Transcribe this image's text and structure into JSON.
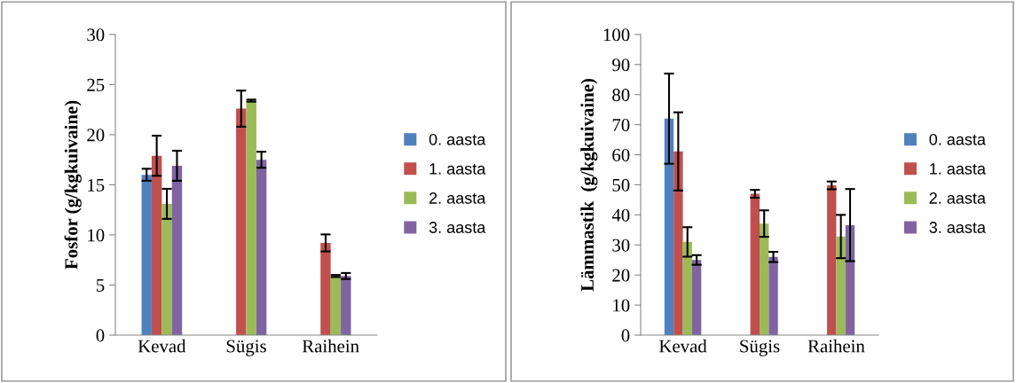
{
  "chart_data": [
    {
      "type": "bar",
      "ylabel": "Fosfor (g/kgkuivaine)",
      "categories": [
        "Kevad",
        "Sügis",
        "Raihein"
      ],
      "ylim": [
        0,
        30
      ],
      "yticks": [
        0,
        5,
        10,
        15,
        20,
        25,
        30
      ],
      "grid": false,
      "legend": "right",
      "series": [
        {
          "name": "0. aasta",
          "color": "#4f81bd",
          "values": [
            16.0,
            null,
            null
          ],
          "errors": [
            0.6,
            null,
            null
          ]
        },
        {
          "name": "1. aasta",
          "color": "#c0504d",
          "values": [
            17.9,
            22.6,
            9.2
          ],
          "errors": [
            2.0,
            1.8,
            0.85
          ]
        },
        {
          "name": "2. aasta",
          "color": "#9bbb59",
          "values": [
            13.1,
            23.4,
            5.9
          ],
          "errors": [
            1.5,
            0.1,
            0.1
          ]
        },
        {
          "name": "3. aasta",
          "color": "#8064a2",
          "values": [
            16.9,
            17.5,
            5.9
          ],
          "errors": [
            1.5,
            0.8,
            0.3
          ]
        }
      ]
    },
    {
      "type": "bar",
      "ylabel": "Lämmastik  (g/kgkuivaine)",
      "categories": [
        "Kevad",
        "Sügis",
        "Raihein"
      ],
      "ylim": [
        0,
        100
      ],
      "yticks": [
        0,
        10,
        20,
        30,
        40,
        50,
        60,
        70,
        80,
        90,
        100
      ],
      "grid": false,
      "legend": "right",
      "series": [
        {
          "name": "0. aasta",
          "color": "#4f81bd",
          "values": [
            72.0,
            null,
            null
          ],
          "errors": [
            15,
            null,
            null
          ]
        },
        {
          "name": "1. aasta",
          "color": "#c0504d",
          "values": [
            61.1,
            47.0,
            49.8
          ],
          "errors": [
            13,
            1.3,
            1.3
          ]
        },
        {
          "name": "2. aasta",
          "color": "#9bbb59",
          "values": [
            31.0,
            37.1,
            32.8
          ],
          "errors": [
            4.9,
            4.4,
            7.2
          ]
        },
        {
          "name": "3. aasta",
          "color": "#8064a2",
          "values": [
            25.0,
            26.0,
            36.6
          ],
          "errors": [
            1.6,
            1.7,
            12
          ]
        }
      ]
    }
  ]
}
